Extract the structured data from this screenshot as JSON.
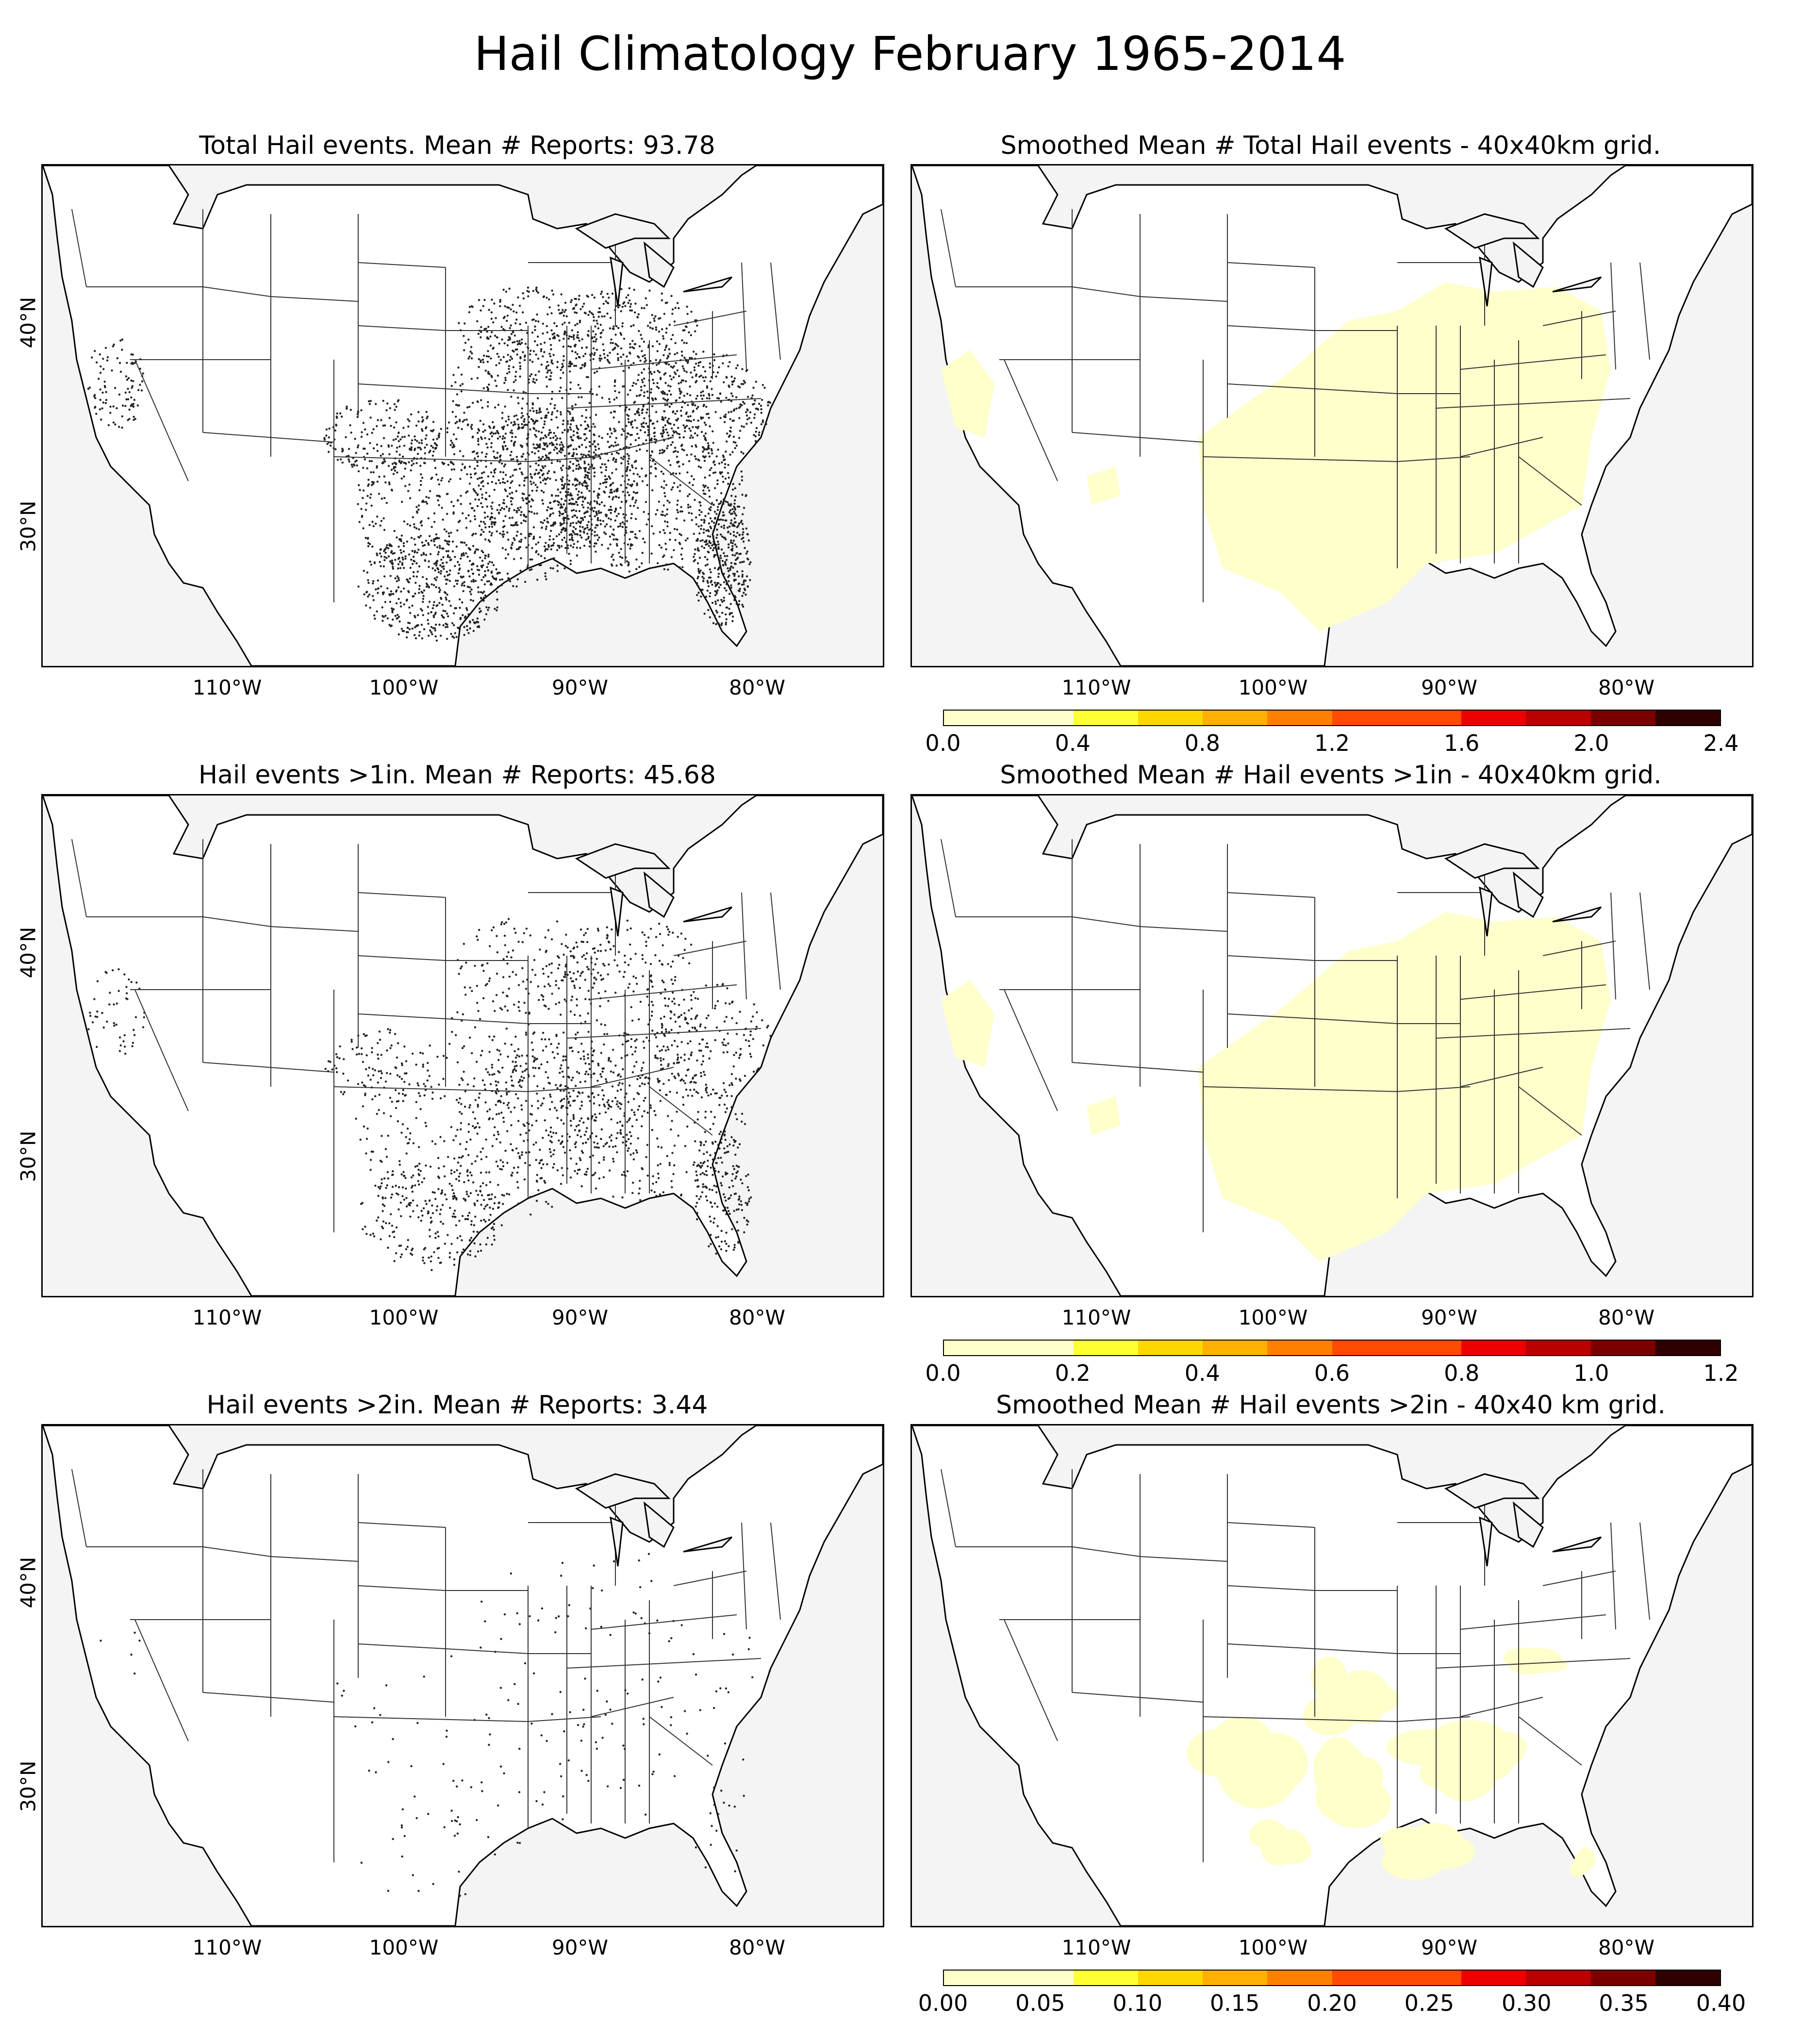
{
  "title": "Hail Climatology February 1965-2014",
  "panels": [
    {
      "id": "p1",
      "title": "Total Hail events. Mean # Reports: 93.78",
      "kind": "points",
      "density": 1.0
    },
    {
      "id": "p2",
      "title": "Smoothed Mean # Total Hail events - 40x40km grid.",
      "kind": "smoothed",
      "level": "wide"
    },
    {
      "id": "p3",
      "title": "Hail events >1in. Mean # Reports: 45.68",
      "kind": "points",
      "density": 0.5
    },
    {
      "id": "p4",
      "title": "Smoothed Mean # Hail events >1in - 40x40km grid.",
      "kind": "smoothed",
      "level": "wide"
    },
    {
      "id": "p5",
      "title": "Hail events >2in. Mean # Reports: 3.44",
      "kind": "points",
      "density": 0.05
    },
    {
      "id": "p6",
      "title": "Smoothed Mean # Hail events >2in - 40x40 km grid.",
      "kind": "smoothed",
      "level": "patchy"
    }
  ],
  "axes": {
    "lat_labels": [
      "40°N",
      "30°N"
    ],
    "lon_labels": [
      "110°W",
      "100°W",
      "90°W",
      "80°W"
    ]
  },
  "colorbars": [
    {
      "ticks": [
        "0.0",
        "0.4",
        "0.8",
        "1.2",
        "1.6",
        "2.0",
        "2.4"
      ]
    },
    {
      "ticks": [
        "0.0",
        "0.2",
        "0.4",
        "0.6",
        "0.8",
        "1.0",
        "1.2"
      ]
    },
    {
      "ticks": [
        "0.00",
        "0.05",
        "0.10",
        "0.15",
        "0.20",
        "0.25",
        "0.30",
        "0.35",
        "0.40"
      ]
    }
  ],
  "colors": {
    "scale": [
      "#ffffcc",
      "#ffff33",
      "#ffd700",
      "#ffb000",
      "#ff8000",
      "#ff4a00",
      "#ee0000",
      "#b80000",
      "#7a0000",
      "#300000"
    ],
    "ocean": "#f4f4f4",
    "land": "#ffffff"
  }
}
